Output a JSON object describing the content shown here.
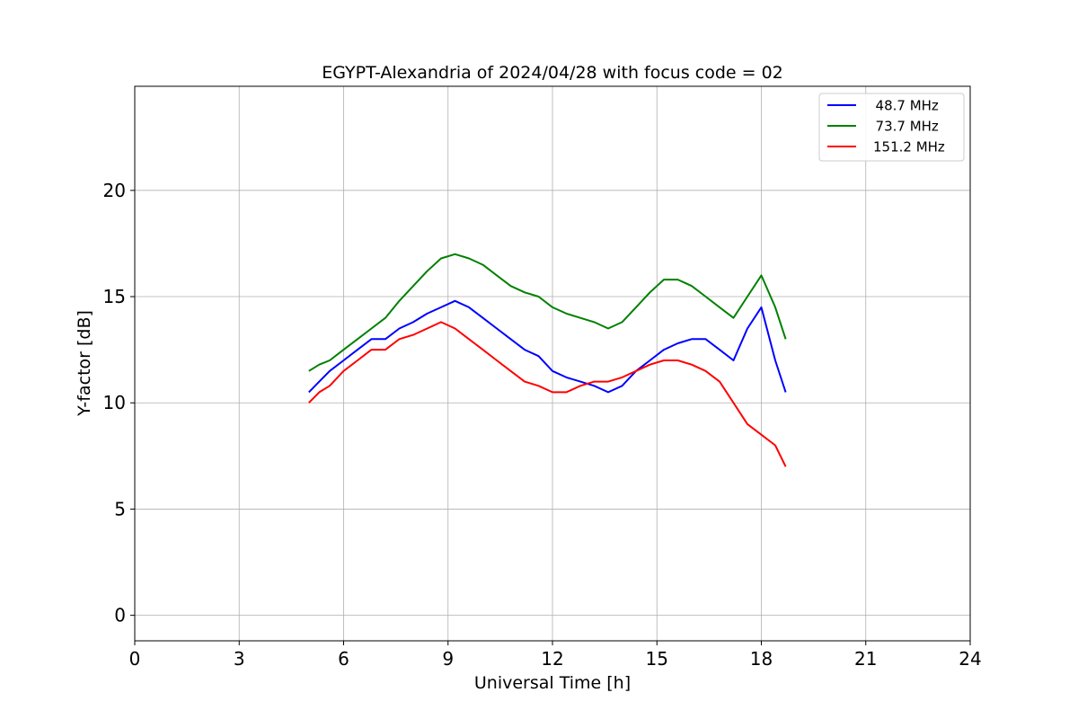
{
  "chart_data": {
    "type": "line",
    "title": "EGYPT-Alexandria of 2024/04/28 with focus code = 02",
    "xlabel": "Universal Time [h]",
    "ylabel": "Y-factor [dB]",
    "xlim": [
      0,
      24
    ],
    "ylim": [
      -1.2,
      24.9
    ],
    "xticks": [
      0,
      3,
      6,
      9,
      12,
      15,
      18,
      21,
      24
    ],
    "yticks": [
      0,
      5,
      10,
      15,
      20
    ],
    "grid": true,
    "legend_position": "top-right",
    "series": [
      {
        "name": "  48.7 MHz",
        "color": "#0000ff",
        "x": [
          5.0,
          5.3,
          5.6,
          6.0,
          6.4,
          6.8,
          7.2,
          7.6,
          8.0,
          8.4,
          8.8,
          9.2,
          9.6,
          10.0,
          10.4,
          10.8,
          11.2,
          11.6,
          12.0,
          12.4,
          12.8,
          13.2,
          13.6,
          14.0,
          14.4,
          14.8,
          15.2,
          15.6,
          16.0,
          16.4,
          16.8,
          17.2,
          17.6,
          18.0,
          18.4,
          18.7
        ],
        "y": [
          10.5,
          11.0,
          11.5,
          12.0,
          12.5,
          13.0,
          13.0,
          13.5,
          13.8,
          14.2,
          14.5,
          14.8,
          14.5,
          14.0,
          13.5,
          13.0,
          12.5,
          12.2,
          11.5,
          11.2,
          11.0,
          10.8,
          10.5,
          10.8,
          11.5,
          12.0,
          12.5,
          12.8,
          13.0,
          13.0,
          12.5,
          12.0,
          13.5,
          14.5,
          12.0,
          10.5
        ]
      },
      {
        "name": "  73.7 MHz",
        "color": "#008000",
        "x": [
          5.0,
          5.3,
          5.6,
          6.0,
          6.4,
          6.8,
          7.2,
          7.6,
          8.0,
          8.4,
          8.8,
          9.2,
          9.6,
          10.0,
          10.4,
          10.8,
          11.2,
          11.6,
          12.0,
          12.4,
          12.8,
          13.2,
          13.6,
          14.0,
          14.4,
          14.8,
          15.2,
          15.6,
          16.0,
          16.4,
          16.8,
          17.2,
          17.6,
          18.0,
          18.4,
          18.7
        ],
        "y": [
          11.5,
          11.8,
          12.0,
          12.5,
          13.0,
          13.5,
          14.0,
          14.8,
          15.5,
          16.2,
          16.8,
          17.0,
          16.8,
          16.5,
          16.0,
          15.5,
          15.2,
          15.0,
          14.5,
          14.2,
          14.0,
          13.8,
          13.5,
          13.8,
          14.5,
          15.2,
          15.8,
          15.8,
          15.5,
          15.0,
          14.5,
          14.0,
          15.0,
          16.0,
          14.5,
          13.0
        ]
      },
      {
        "name": "151.2 MHz",
        "color": "#ff0000",
        "x": [
          5.0,
          5.3,
          5.6,
          6.0,
          6.4,
          6.8,
          7.2,
          7.6,
          8.0,
          8.4,
          8.8,
          9.2,
          9.6,
          10.0,
          10.4,
          10.8,
          11.2,
          11.6,
          12.0,
          12.4,
          12.8,
          13.2,
          13.6,
          14.0,
          14.4,
          14.8,
          15.2,
          15.6,
          16.0,
          16.4,
          16.8,
          17.2,
          17.6,
          18.0,
          18.4,
          18.7
        ],
        "y": [
          10.0,
          10.5,
          10.8,
          11.5,
          12.0,
          12.5,
          12.5,
          13.0,
          13.2,
          13.5,
          13.8,
          13.5,
          13.0,
          12.5,
          12.0,
          11.5,
          11.0,
          10.8,
          10.5,
          10.5,
          10.8,
          11.0,
          11.0,
          11.2,
          11.5,
          11.8,
          12.0,
          12.0,
          11.8,
          11.5,
          11.0,
          10.0,
          9.0,
          8.5,
          8.0,
          7.0
        ]
      }
    ]
  }
}
